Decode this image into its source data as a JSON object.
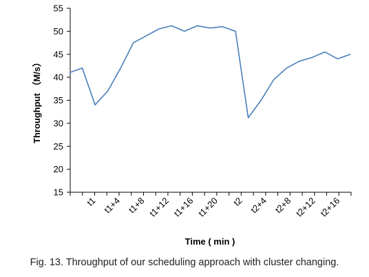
{
  "caption": "Fig. 13. Throughput of our scheduling approach with cluster changing.",
  "chart_data": {
    "type": "line",
    "title": "",
    "xlabel": "Time ( min )",
    "ylabel": "Throughput （M/s）",
    "ylim": [
      15,
      55
    ],
    "yticks": [
      15,
      20,
      25,
      30,
      35,
      40,
      45,
      50,
      55
    ],
    "xtick_labels": [
      "t1",
      "t1+4",
      "t1+8",
      "t1+12",
      "t1+16",
      "t1+20",
      "t2",
      "t2+4",
      "t2+8",
      "t2+12",
      "t2+16"
    ],
    "grid": false,
    "legend": "none",
    "color": "#4a7ebb",
    "values": [
      41,
      42,
      34,
      37,
      42,
      47.5,
      49,
      50.5,
      51.2,
      50,
      51.2,
      50.7,
      51,
      50,
      31.2,
      35,
      39.5,
      42,
      43.5,
      44.3,
      45.5,
      44,
      45
    ]
  }
}
